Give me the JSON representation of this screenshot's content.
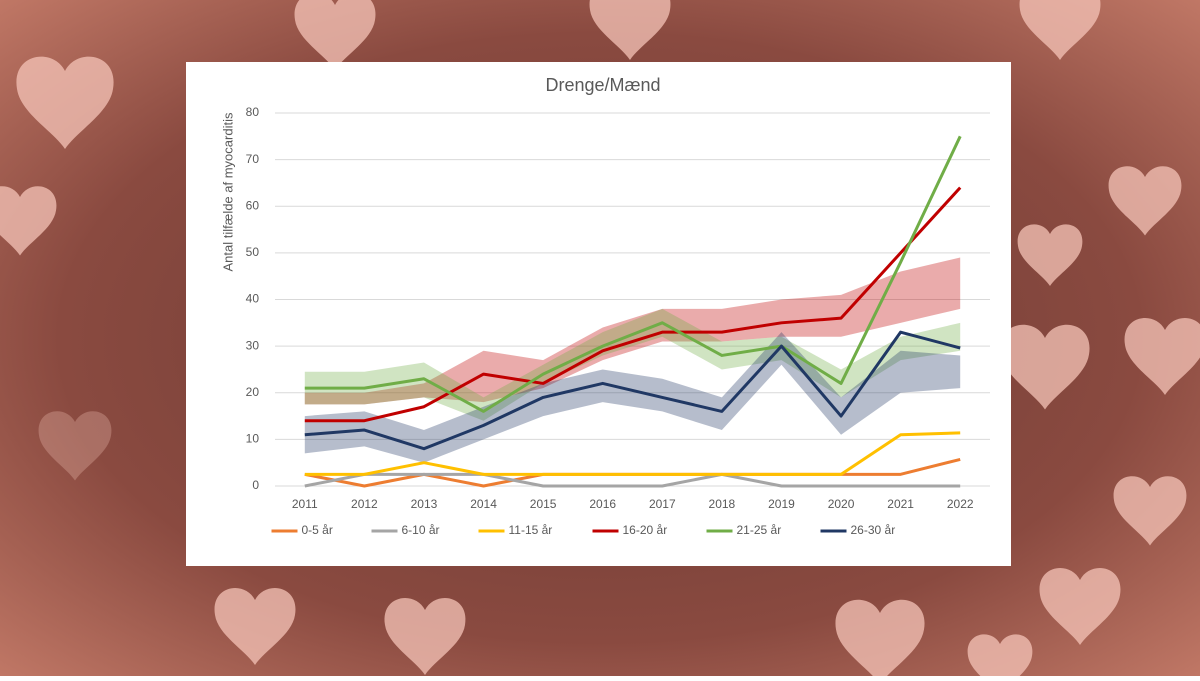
{
  "chart_data": {
    "type": "line",
    "title": "Drenge/Mænd",
    "y_label": "Antal tilfælde af myocarditis",
    "categories": [
      "2011",
      "2012",
      "2013",
      "2014",
      "2015",
      "2016",
      "2017",
      "2018",
      "2019",
      "2020",
      "2021",
      "2022"
    ],
    "ylim": [
      0,
      80
    ],
    "yticks": [
      0,
      10,
      20,
      30,
      40,
      50,
      60,
      70,
      80
    ],
    "grid": true,
    "legend": "bottom",
    "series": [
      {
        "name": "0-5 år",
        "color": "#ED7D31",
        "values": [
          2.5,
          0,
          2.5,
          0,
          2.5,
          2.5,
          2.5,
          2.5,
          2.5,
          2.5,
          2.5,
          5.7
        ]
      },
      {
        "name": "6-10 år",
        "color": "#A5A5A5",
        "values": [
          0,
          2.5,
          2.5,
          2.5,
          0,
          0,
          0,
          2.5,
          0,
          0,
          0,
          0
        ]
      },
      {
        "name": "11-15 år",
        "color": "#FFC000",
        "values": [
          2.5,
          2.5,
          5,
          2.5,
          2.5,
          2.5,
          2.5,
          2.5,
          2.5,
          2.5,
          11,
          11.4
        ]
      },
      {
        "name": "16-20 år",
        "color": "#C00000",
        "values": [
          14,
          14,
          17,
          24,
          22,
          29,
          33,
          33,
          35,
          36,
          50,
          64
        ],
        "band": {
          "lower": [
            17.5,
            17.5,
            19,
            18,
            21,
            27,
            31,
            31,
            32,
            32,
            35,
            38
          ],
          "upper": [
            20,
            20,
            22,
            29,
            27,
            34,
            38,
            38,
            40,
            41,
            46,
            49
          ]
        }
      },
      {
        "name": "21-25 år",
        "color": "#70AD47",
        "values": [
          21,
          21,
          23,
          16,
          24,
          30,
          35,
          28,
          30,
          22,
          48,
          75
        ],
        "band": {
          "lower": [
            17.5,
            17.5,
            19,
            14,
            22,
            28,
            32,
            25,
            27,
            19,
            27,
            29
          ],
          "upper": [
            24.5,
            24.5,
            26.5,
            19,
            26,
            33,
            38,
            31,
            32,
            25,
            32,
            35
          ]
        }
      },
      {
        "name": "26-30 år",
        "color": "#203864",
        "values": [
          11,
          12,
          8,
          13,
          19,
          22,
          19,
          16,
          30,
          15,
          33,
          29.6
        ],
        "band": {
          "lower": [
            7,
            8.5,
            5,
            10,
            15,
            18,
            16,
            12,
            26,
            11,
            20,
            21
          ],
          "upper": [
            15,
            16,
            12,
            17,
            22,
            25,
            23,
            19,
            33,
            19,
            29,
            28
          ]
        }
      }
    ]
  }
}
